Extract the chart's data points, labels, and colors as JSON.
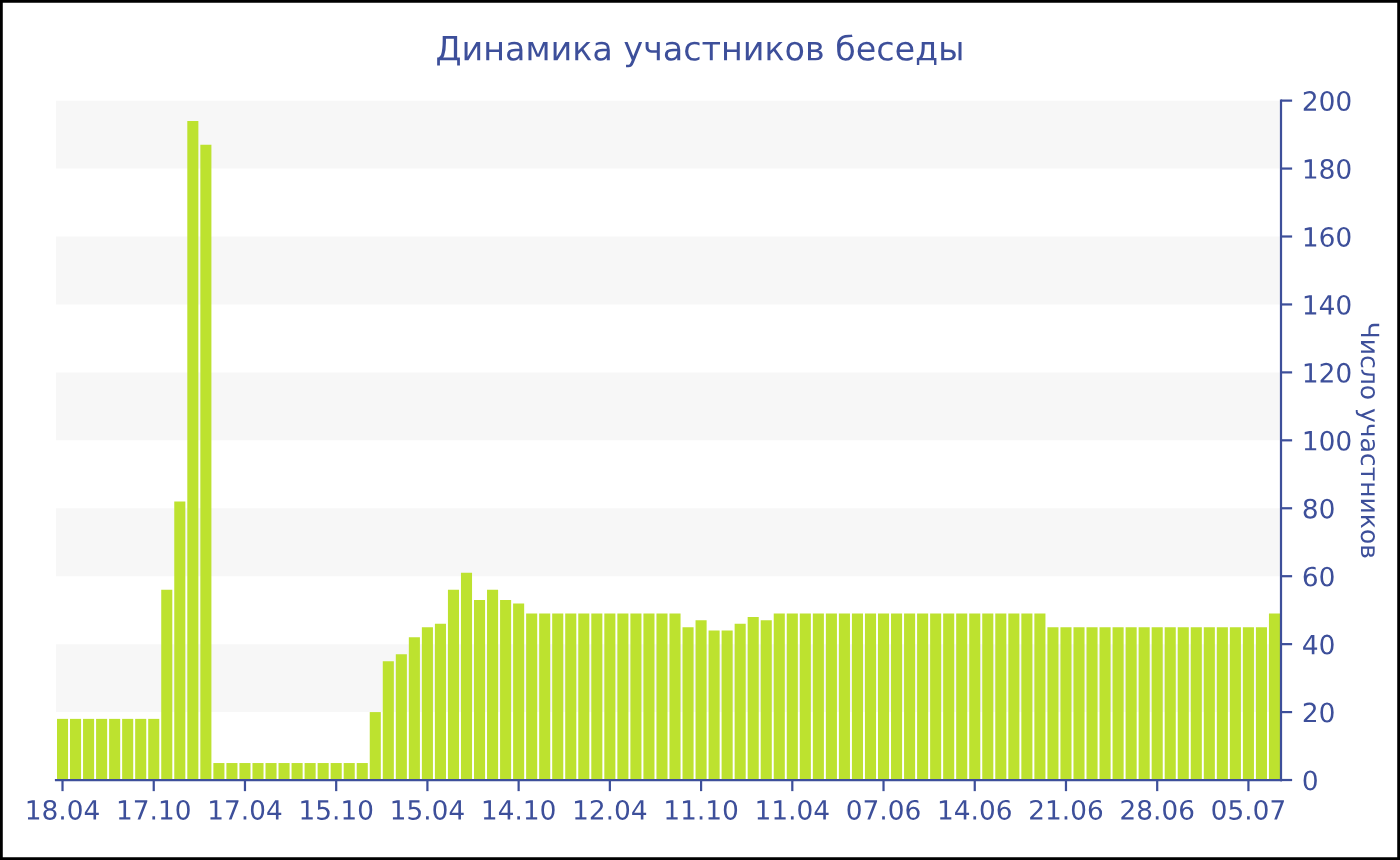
{
  "chart_data": {
    "type": "bar",
    "title": "Динамика участников беседы",
    "ylabel": "Число участников",
    "categories": [
      "18.04",
      null,
      null,
      null,
      null,
      null,
      null,
      "17.10",
      null,
      null,
      null,
      null,
      null,
      null,
      "17.04",
      null,
      null,
      null,
      null,
      null,
      null,
      "15.10",
      null,
      null,
      null,
      null,
      null,
      null,
      "15.04",
      null,
      null,
      null,
      null,
      null,
      null,
      "14.10",
      null,
      null,
      null,
      null,
      null,
      null,
      "12.04",
      null,
      null,
      null,
      null,
      null,
      null,
      "11.10",
      null,
      null,
      null,
      null,
      null,
      null,
      "11.04",
      null,
      null,
      null,
      null,
      null,
      null,
      "07.06",
      null,
      null,
      null,
      null,
      null,
      null,
      "14.06",
      null,
      null,
      null,
      null,
      null,
      null,
      "21.06",
      null,
      null,
      null,
      null,
      null,
      null,
      "28.06",
      null,
      null,
      null,
      null,
      null,
      null,
      "05.07",
      null,
      null
    ],
    "values": [
      18,
      18,
      18,
      18,
      18,
      18,
      18,
      18,
      56,
      82,
      194,
      187,
      5,
      5,
      5,
      5,
      5,
      5,
      5,
      5,
      5,
      5,
      5,
      5,
      20,
      35,
      37,
      42,
      45,
      46,
      56,
      61,
      53,
      56,
      53,
      52,
      49,
      49,
      49,
      49,
      49,
      49,
      49,
      49,
      49,
      49,
      49,
      49,
      45,
      47,
      44,
      44,
      46,
      48,
      47,
      49,
      49,
      49,
      49,
      49,
      49,
      49,
      49,
      49,
      49,
      49,
      49,
      49,
      49,
      49,
      49,
      49,
      49,
      49,
      49,
      49,
      45,
      45,
      45,
      45,
      45,
      45,
      45,
      45,
      45,
      45,
      45,
      45,
      45,
      45,
      45,
      45,
      45,
      49
    ],
    "color": "#bde22f",
    "ylim": [
      0,
      200
    ],
    "yticks": [
      0,
      20,
      40,
      60,
      80,
      100,
      120,
      140,
      160,
      180,
      200
    ],
    "bands": [
      {
        "axis": "y",
        "from": 20,
        "to": 40,
        "color": "#f7f7f7"
      },
      {
        "axis": "y",
        "from": 60,
        "to": 80,
        "color": "#f7f7f7"
      },
      {
        "axis": "y",
        "from": 100,
        "to": 120,
        "color": "#f7f7f7"
      },
      {
        "axis": "y",
        "from": 140,
        "to": 160,
        "color": "#f7f7f7"
      },
      {
        "axis": "y",
        "from": 180,
        "to": 200,
        "color": "#f7f7f7"
      }
    ],
    "grid": false,
    "legend": false
  }
}
